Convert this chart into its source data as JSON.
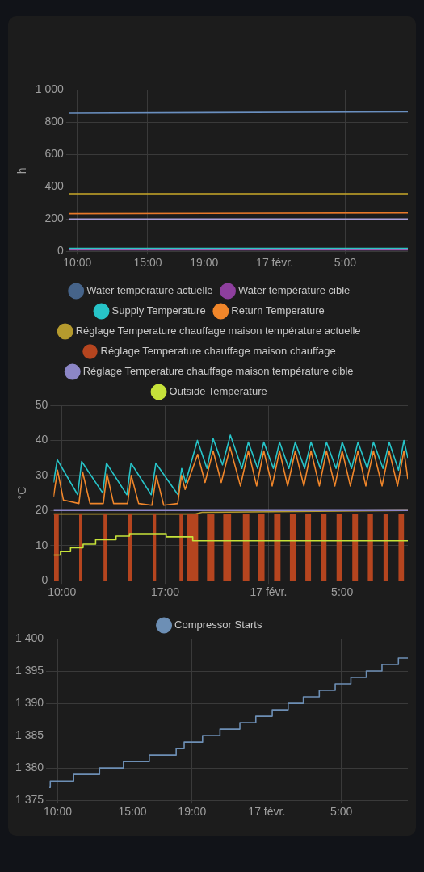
{
  "chart_data": [
    {
      "type": "line",
      "ylabel": "h",
      "xlim": [
        "--02-16T09:26",
        "--02-17T09:27"
      ],
      "xticks": [
        {
          "value": "--02-16T10:00",
          "label": "10:00"
        },
        {
          "value": "--02-16T15:00",
          "label": "15:00"
        },
        {
          "value": "--02-16T19:00",
          "label": "19:00"
        },
        {
          "value": "--02-17T00:00",
          "label": "17 févr."
        },
        {
          "value": "--02-17T05:00",
          "label": "5:00"
        }
      ],
      "ylim": [
        0,
        1000
      ],
      "yticks": [
        0,
        200,
        400,
        600,
        800,
        {
          "value": 1000,
          "label": "1 000"
        }
      ],
      "grid": true,
      "legend": false,
      "marker": "none",
      "series": [
        {
          "color": "#6a8fbf",
          "x": [
            "--02-16T09:26",
            "--02-17T09:27"
          ],
          "values": [
            857,
            864
          ]
        },
        {
          "color": "#c8a828",
          "x": [
            "--02-16T09:26",
            "--02-17T09:27"
          ],
          "values": [
            356,
            356
          ]
        },
        {
          "color": "#e8792a",
          "x": [
            "--02-16T09:26",
            "--02-17T09:27"
          ],
          "values": [
            233,
            238
          ]
        },
        {
          "color": "#a9a0d8",
          "x": [
            "--02-16T09:26",
            "--02-17T09:27"
          ],
          "values": [
            200,
            200
          ]
        },
        {
          "color": "#2cc4c4",
          "x": [
            "--02-16T09:26",
            "--02-17T09:27"
          ],
          "values": [
            18,
            18
          ]
        },
        {
          "color": "#9b5fb3",
          "x": [
            "--02-16T09:26",
            "--02-17T09:27"
          ],
          "values": [
            9,
            9
          ]
        }
      ]
    },
    {
      "type": "line",
      "ylabel": "°C",
      "xlim": [
        "--02-16T09:26",
        "--02-17T09:27"
      ],
      "xticks": [
        {
          "value": "--02-16T10:00",
          "label": "10:00"
        },
        {
          "value": "--02-16T17:00",
          "label": "17:00"
        },
        {
          "value": "--02-17T00:00",
          "label": "17 févr."
        },
        {
          "value": "--02-17T05:00",
          "label": "5:00"
        }
      ],
      "ylim": [
        0,
        50
      ],
      "yticks": [
        0,
        10,
        20,
        30,
        40,
        50
      ],
      "grid": true,
      "legend": "top",
      "marker": "none",
      "series": [
        {
          "name": "Water température actuelle",
          "color": "#46648a"
        },
        {
          "name": "Water température cible",
          "color": "#8e3f9e"
        },
        {
          "name": "Supply Temperature",
          "color": "#27c4c8",
          "x": [
            "--02-16T09:26",
            "--02-16T09:41",
            "--02-16T11:04",
            "--02-16T11:20",
            "--02-16T12:46",
            "--02-16T13:01",
            "--02-16T14:24",
            "--02-16T14:41",
            "--02-16T16:03",
            "--02-16T16:22",
            "--02-16T17:52",
            "--02-16T18:07",
            "--02-16T18:23",
            "--02-16T19:11",
            "--02-16T19:50",
            "--02-16T20:15",
            "--02-16T20:53",
            "--02-16T21:25",
            "--02-16T22:12",
            "--02-16T22:38",
            "--02-16T23:16",
            "--02-16T23:41",
            "--02-17T00:20",
            "--02-17T00:45",
            "--02-17T01:23",
            "--02-17T01:49",
            "--02-17T02:27",
            "--02-17T02:53",
            "--02-17T03:31",
            "--02-17T03:56",
            "--02-17T04:35",
            "--02-17T05:00",
            "--02-17T05:38",
            "--02-17T06:04",
            "--02-17T06:42",
            "--02-17T07:07",
            "--02-17T07:46",
            "--02-17T08:11",
            "--02-17T08:49",
            "--02-17T09:11",
            "--02-17T09:27"
          ],
          "values": [
            28,
            34.5,
            24.5,
            34,
            25,
            33.5,
            24.5,
            33.5,
            24.5,
            33.5,
            24.5,
            32,
            28,
            40,
            32,
            40.5,
            33,
            41.5,
            32,
            39.5,
            32,
            39.5,
            32,
            39.5,
            32,
            39.5,
            32,
            39.5,
            32,
            39.5,
            32,
            39.5,
            32,
            39.5,
            32,
            39.5,
            32,
            39.5,
            31.5,
            40,
            35
          ]
        },
        {
          "name": "Return Temperature",
          "color": "#f0862a",
          "x": [
            "--02-16T09:26",
            "--02-16T09:42",
            "--02-16T10:06",
            "--02-16T11:09",
            "--02-16T11:24",
            "--02-16T11:54",
            "--02-16T12:48",
            "--02-16T13:03",
            "--02-16T13:30",
            "--02-16T14:27",
            "--02-16T14:42",
            "--02-16T15:12",
            "--02-16T16:06",
            "--02-16T16:24",
            "--02-16T16:54",
            "--02-16T17:51",
            "--02-16T18:06",
            "--02-16T18:21",
            "--02-16T19:12",
            "--02-16T19:42",
            "--02-16T20:15",
            "--02-16T20:48",
            "--02-16T21:24",
            "--02-16T22:06",
            "--02-16T22:38",
            "--02-16T23:12",
            "--02-16T23:41",
            "--02-17T00:15",
            "--02-17T00:45",
            "--02-17T01:18",
            "--02-17T01:49",
            "--02-17T02:24",
            "--02-17T02:53",
            "--02-17T03:27",
            "--02-17T03:56",
            "--02-17T04:30",
            "--02-17T05:00",
            "--02-17T05:33",
            "--02-17T06:04",
            "--02-17T06:36",
            "--02-17T07:07",
            "--02-17T07:42",
            "--02-17T08:11",
            "--02-17T08:45",
            "--02-17T09:11",
            "--02-17T09:27"
          ],
          "values": [
            24,
            31.5,
            23,
            22,
            31,
            22,
            22,
            30.5,
            22,
            22,
            30,
            22,
            21.5,
            30,
            21.5,
            22,
            30,
            26,
            36,
            28,
            37,
            28,
            38,
            27,
            37,
            27,
            37,
            27,
            37,
            27,
            37,
            27,
            37,
            27,
            37,
            27,
            37,
            27,
            37,
            27,
            37,
            27,
            37,
            27,
            37,
            29
          ]
        },
        {
          "name": "Réglage Temperature chauffage maison température actuelle",
          "color": "#b59a2e",
          "x": [
            "--02-16T09:26",
            "--02-16T19:00",
            "--02-16T19:30",
            "--02-17T09:27"
          ],
          "values": [
            19,
            19,
            19.5,
            20
          ]
        },
        {
          "name": "Réglage Temperature chauffage maison chauffage",
          "type": "area",
          "color": "#b5451f",
          "x": [
            "--02-16T09:28",
            "--02-16T09:28",
            "--02-16T09:47",
            "--02-16T09:47",
            "--02-16T11:10",
            "--02-16T11:10",
            "--02-16T11:23",
            "--02-16T11:23",
            "--02-16T12:49",
            "--02-16T12:49",
            "--02-16T13:05",
            "--02-16T13:05",
            "--02-16T14:30",
            "--02-16T14:30",
            "--02-16T14:44",
            "--02-16T14:44",
            "--02-16T16:11",
            "--02-16T16:11",
            "--02-16T16:23",
            "--02-16T16:23",
            "--02-16T17:58",
            "--02-16T17:58",
            "--02-16T18:13",
            "--02-16T18:13",
            "--02-16T18:30",
            "--02-16T18:30",
            "--02-16T19:14",
            "--02-16T19:14",
            "--02-16T19:50",
            "--02-16T19:50",
            "--02-16T20:20",
            "--02-16T20:20",
            "--02-16T20:56",
            "--02-16T20:56",
            "--02-16T21:28",
            "--02-16T21:28",
            "--02-16T22:16",
            "--02-16T22:16",
            "--02-16T22:42",
            "--02-16T22:42",
            "--02-16T23:19",
            "--02-16T23:19",
            "--02-16T23:44",
            "--02-16T23:44",
            "--02-17T00:23",
            "--02-17T00:23",
            "--02-17T00:49",
            "--02-17T00:49",
            "--02-17T01:27",
            "--02-17T01:27",
            "--02-17T01:52",
            "--02-17T01:52",
            "--02-17T02:30",
            "--02-17T02:30",
            "--02-17T02:53",
            "--02-17T02:53",
            "--02-17T03:34",
            "--02-17T03:34",
            "--02-17T03:56",
            "--02-17T03:56",
            "--02-17T04:37",
            "--02-17T04:37",
            "--02-17T05:00",
            "--02-17T05:00",
            "--02-17T05:41",
            "--02-17T05:41",
            "--02-17T06:04",
            "--02-17T06:04",
            "--02-17T06:44",
            "--02-17T06:44",
            "--02-17T07:05",
            "--02-17T07:05",
            "--02-17T07:48",
            "--02-17T07:48",
            "--02-17T08:08",
            "--02-17T08:08",
            "--02-17T08:49",
            "--02-17T08:49",
            "--02-17T09:12",
            "--02-17T09:12"
          ],
          "values": [
            0,
            19,
            19,
            0,
            0,
            19,
            19,
            0,
            0,
            19,
            19,
            0,
            0,
            19,
            19,
            0,
            0,
            19,
            19,
            0,
            0,
            19,
            19,
            0,
            0,
            19,
            19,
            0,
            0,
            19,
            19,
            0,
            0,
            19,
            19,
            0,
            0,
            19,
            19,
            0,
            0,
            19,
            19,
            0,
            0,
            19,
            19,
            0,
            0,
            19,
            19,
            0,
            0,
            19,
            19,
            0,
            0,
            19,
            19,
            0,
            0,
            19,
            19,
            0,
            0,
            19,
            19,
            0,
            0,
            19,
            19,
            0,
            0,
            19,
            19,
            0,
            0,
            19,
            19,
            0
          ]
        },
        {
          "name": "Réglage Temperature chauffage maison température cible",
          "color": "#8c86c6",
          "x": [
            "--02-16T09:26",
            "--02-17T09:27"
          ],
          "values": [
            20,
            20
          ]
        },
        {
          "name": "Outside Temperature",
          "type": "step",
          "color": "#c6e23a",
          "x": [
            "--02-16T09:26",
            "--02-16T09:54",
            "--02-16T10:35",
            "--02-16T11:26",
            "--02-16T12:17",
            "--02-16T13:40",
            "--02-16T14:35",
            "--02-16T17:04",
            "--02-16T18:52",
            "--02-17T09:27"
          ],
          "values": [
            7.3,
            8.3,
            9.4,
            10.4,
            11.7,
            12.7,
            13.4,
            12.5,
            11.4,
            11.4
          ]
        }
      ]
    },
    {
      "type": "step",
      "xlim": [
        "--02-16T09:26",
        "--02-17T09:27"
      ],
      "xticks": [
        {
          "value": "--02-16T10:00",
          "label": "10:00"
        },
        {
          "value": "--02-16T15:00",
          "label": "15:00"
        },
        {
          "value": "--02-16T19:00",
          "label": "19:00"
        },
        {
          "value": "--02-17T00:00",
          "label": "17 févr."
        },
        {
          "value": "--02-17T05:00",
          "label": "5:00"
        }
      ],
      "ylim": [
        1375,
        1400
      ],
      "yticks": [
        {
          "value": 1375,
          "label": "1 375"
        },
        {
          "value": 1380,
          "label": "1 380"
        },
        {
          "value": 1385,
          "label": "1 385"
        },
        {
          "value": 1390,
          "label": "1 390"
        },
        {
          "value": 1395,
          "label": "1 395"
        },
        {
          "value": 1400,
          "label": "1 400"
        }
      ],
      "grid": true,
      "legend": "top",
      "marker": "none",
      "series": [
        {
          "name": "Compressor Starts",
          "color": "#6d8fb5",
          "x": [
            "--02-16T09:26",
            "--02-16T09:30",
            "--02-16T11:04",
            "--02-16T12:48",
            "--02-16T14:24",
            "--02-16T16:08",
            "--02-16T17:56",
            "--02-16T18:28",
            "--02-16T19:42",
            "--02-16T20:52",
            "--02-16T22:12",
            "--02-16T23:16",
            "--02-17T00:22",
            "--02-17T01:26",
            "--02-17T02:27",
            "--02-17T03:31",
            "--02-17T04:35",
            "--02-17T05:38",
            "--02-17T06:40",
            "--02-17T07:43",
            "--02-17T08:49",
            "--02-17T09:27"
          ],
          "values": [
            1377,
            1378,
            1379,
            1380,
            1381,
            1382,
            1383,
            1384,
            1385,
            1386,
            1387,
            1388,
            1389,
            1390,
            1391,
            1392,
            1393,
            1394,
            1395,
            1396,
            1397,
            1397
          ]
        }
      ]
    }
  ]
}
